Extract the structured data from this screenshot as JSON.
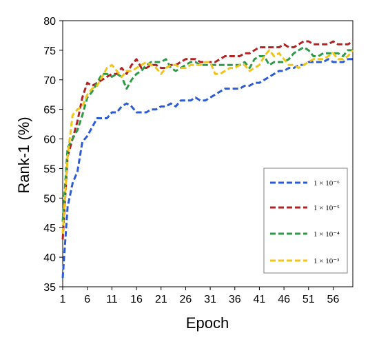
{
  "chart_data": {
    "type": "line",
    "title": "",
    "xlabel": "Epoch",
    "ylabel": "Rank-1 (%)",
    "xlim": [
      1,
      60
    ],
    "ylim": [
      35,
      80
    ],
    "x_ticks": [
      1,
      6,
      11,
      16,
      21,
      26,
      31,
      36,
      41,
      46,
      51,
      56
    ],
    "y_ticks": [
      35,
      40,
      45,
      50,
      55,
      60,
      65,
      70,
      75,
      80
    ],
    "grid": false,
    "legend_position": "right",
    "line_style": "dashed",
    "x": [
      1,
      2,
      3,
      4,
      5,
      6,
      7,
      8,
      9,
      10,
      11,
      12,
      13,
      14,
      15,
      16,
      17,
      18,
      19,
      20,
      21,
      22,
      23,
      24,
      25,
      26,
      27,
      28,
      29,
      30,
      31,
      32,
      33,
      34,
      35,
      36,
      37,
      38,
      39,
      40,
      41,
      42,
      43,
      44,
      45,
      46,
      47,
      48,
      49,
      50,
      51,
      52,
      53,
      54,
      55,
      56,
      57,
      58,
      59,
      60
    ],
    "series": [
      {
        "name": "1 × 10⁻⁶",
        "color": "#2b5bd7",
        "values": [
          36.5,
          48.5,
          52.5,
          54.5,
          59.5,
          60.5,
          62,
          63.5,
          63.5,
          63.5,
          64.5,
          64.5,
          65.5,
          66,
          65.5,
          64.5,
          64.5,
          64.5,
          65,
          65,
          65.5,
          65.5,
          66,
          65.5,
          66.5,
          66.5,
          66.5,
          67,
          66.5,
          66.5,
          67,
          67.5,
          68,
          68.5,
          68.5,
          68.5,
          68.5,
          69,
          69,
          69.5,
          69.5,
          70,
          70.5,
          71,
          71.5,
          71.5,
          72,
          72,
          72.5,
          72.5,
          73,
          73,
          73,
          73,
          73.5,
          73,
          73,
          73,
          73.5,
          73.5
        ]
      },
      {
        "name": "1 × 10⁻⁵",
        "color": "#b22222",
        "values": [
          43,
          57,
          60,
          63,
          67,
          69.5,
          69,
          69.5,
          70,
          70.5,
          71,
          71,
          72,
          71,
          72.5,
          73.5,
          72,
          72,
          72.5,
          72.5,
          72,
          72,
          72.5,
          72.5,
          73,
          73.5,
          73.5,
          73.5,
          73,
          73,
          73,
          73,
          73.5,
          74,
          74,
          74,
          74,
          74.5,
          74.5,
          75,
          75.5,
          75.5,
          75.5,
          75.5,
          75.5,
          76,
          75.5,
          75.5,
          76,
          76.5,
          76.5,
          76,
          76,
          76,
          76,
          76.5,
          76,
          76,
          76,
          76.5
        ]
      },
      {
        "name": "1 × 10⁻⁴",
        "color": "#2e9a48",
        "values": [
          46,
          58.5,
          60,
          61.5,
          64,
          67,
          68,
          69.5,
          71,
          71,
          70.5,
          71,
          70.5,
          68.5,
          70,
          71,
          71.5,
          72.5,
          73,
          73,
          73,
          73.5,
          72,
          71.5,
          72,
          72.5,
          73,
          73,
          72.5,
          72.5,
          72.5,
          72.5,
          72.5,
          72.5,
          72.5,
          72.5,
          72.5,
          73,
          72,
          73.5,
          74,
          74,
          72.5,
          73,
          73,
          73,
          73.5,
          74.5,
          75,
          75.5,
          75,
          74,
          74,
          74.5,
          74.5,
          74.5,
          74.5,
          74,
          75,
          75
        ]
      },
      {
        "name": "1 × 10⁻³",
        "color": "#f0c419",
        "values": [
          44,
          57,
          64,
          65,
          65.5,
          67.5,
          68.5,
          69,
          70.5,
          72,
          72.5,
          71.5,
          70.5,
          71.5,
          71.5,
          72,
          72.5,
          73,
          72.5,
          72,
          71,
          72,
          72.5,
          72.5,
          72,
          72,
          72.5,
          72.5,
          72.5,
          73,
          73,
          71,
          71,
          71.5,
          72,
          72,
          72.5,
          72.5,
          71.5,
          72,
          72.5,
          74,
          75,
          74,
          74.5,
          73.5,
          72.5,
          72.5,
          72,
          72.5,
          73,
          73.5,
          73.5,
          73.5,
          74,
          74.5,
          73.5,
          73.5,
          74,
          75
        ]
      }
    ]
  }
}
